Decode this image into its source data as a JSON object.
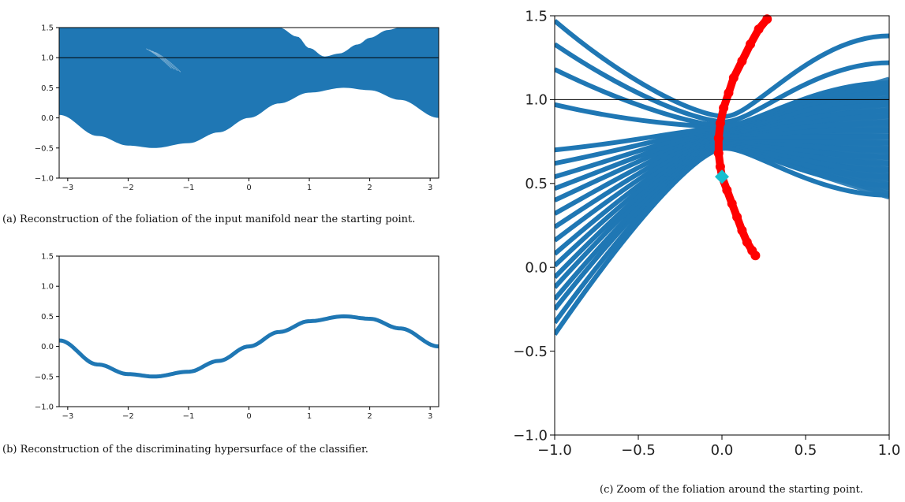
{
  "colors": {
    "foliation": "#1f77b4",
    "path": "#ff0000",
    "start": "#17becf",
    "axes": "#000000"
  },
  "captions": {
    "a": "(a) Reconstruction of the foliation of the input manifold near the starting point.",
    "b": "(b) Reconstruction of the discriminating hypersurface of the classifier.",
    "c": "(c) Zoom of the foliation around the starting point."
  },
  "chart_data": [
    {
      "id": "a",
      "type": "area",
      "xlim": [
        -3.14159,
        3.14159
      ],
      "ylim": [
        -1.0,
        1.5
      ],
      "xticks": [
        "−3",
        "−2",
        "−1",
        "0",
        "1",
        "2",
        "3"
      ],
      "xtick_values": [
        -3,
        -2,
        -1,
        0,
        1,
        2,
        3
      ],
      "yticks": [
        "1.5",
        "1.0",
        "0.5",
        "0.0",
        "−0.5",
        "−1.0"
      ],
      "ytick_values": [
        1.5,
        1.0,
        0.5,
        0.0,
        -0.5,
        -1.0
      ],
      "hline": 1.0,
      "series": [
        {
          "role": "lower-boundary",
          "x": [
            -3.14,
            -2.5,
            -2.0,
            -1.57,
            -1.0,
            -0.5,
            0.0,
            0.5,
            1.0,
            1.57,
            2.0,
            2.5,
            3.14
          ],
          "y": [
            0.05,
            -0.3,
            -0.46,
            -0.5,
            -0.42,
            -0.24,
            0.0,
            0.24,
            0.42,
            0.5,
            0.46,
            0.3,
            0.0
          ]
        },
        {
          "role": "upper-boundary",
          "x": [
            -3.14,
            0.5,
            0.8,
            1.0,
            1.25,
            1.5,
            1.8,
            2.0,
            2.3,
            2.5,
            3.14
          ],
          "y": [
            1.5,
            1.5,
            1.35,
            1.16,
            1.02,
            1.07,
            1.22,
            1.33,
            1.46,
            1.5,
            1.5
          ]
        }
      ]
    },
    {
      "id": "b",
      "type": "line",
      "xlim": [
        -3.14159,
        3.14159
      ],
      "ylim": [
        -1.0,
        1.5
      ],
      "xticks": [
        "−3",
        "−2",
        "−1",
        "0",
        "1",
        "2",
        "3"
      ],
      "xtick_values": [
        -3,
        -2,
        -1,
        0,
        1,
        2,
        3
      ],
      "yticks": [
        "1.5",
        "1.0",
        "0.5",
        "0.0",
        "−0.5",
        "−1.0"
      ],
      "ytick_values": [
        1.5,
        1.0,
        0.5,
        0.0,
        -0.5,
        -1.0
      ],
      "series": [
        {
          "x": [
            -3.14,
            -2.5,
            -2.0,
            -1.57,
            -1.0,
            -0.5,
            0.0,
            0.5,
            1.0,
            1.57,
            2.0,
            2.5,
            3.14
          ],
          "y": [
            0.1,
            -0.3,
            -0.46,
            -0.5,
            -0.42,
            -0.24,
            0.0,
            0.24,
            0.42,
            0.5,
            0.46,
            0.3,
            0.0
          ]
        }
      ]
    },
    {
      "id": "c",
      "type": "scatter",
      "xlim": [
        -1.0,
        1.0
      ],
      "ylim": [
        -1.0,
        1.5
      ],
      "xticks": [
        "−1.0",
        "−0.5",
        "0.0",
        "0.5",
        "1.0"
      ],
      "xtick_values": [
        -1.0,
        -0.5,
        0.0,
        0.5,
        1.0
      ],
      "yticks": [
        "1.5",
        "1.0",
        "0.5",
        "0.0",
        "−0.5",
        "−1.0"
      ],
      "ytick_values": [
        1.5,
        1.0,
        0.5,
        0.0,
        -0.5,
        -1.0
      ],
      "hline": 1.0,
      "leaves": {
        "left_y": [
          -0.4,
          -0.33,
          -0.25,
          -0.19,
          -0.12,
          -0.06,
          0.01,
          0.08,
          0.16,
          0.24,
          0.32,
          0.4,
          0.47,
          0.54,
          0.62,
          0.7,
          0.97,
          1.18,
          1.33,
          1.47
        ],
        "right_y": [
          0.43,
          0.49,
          0.54,
          0.58,
          0.62,
          0.66,
          0.7,
          0.74,
          0.78,
          0.82,
          0.86,
          0.9,
          0.93,
          0.97,
          1.0,
          1.04,
          1.07,
          1.1,
          1.22,
          1.38
        ]
      },
      "path": {
        "x": [
          0.27,
          0.22,
          0.17,
          0.12,
          0.07,
          0.04,
          0.01,
          -0.01,
          -0.02,
          -0.02,
          -0.01,
          0.0,
          0.03,
          0.06,
          0.09,
          0.12,
          0.15,
          0.18,
          0.2
        ],
        "y": [
          1.48,
          1.42,
          1.33,
          1.23,
          1.13,
          1.04,
          0.95,
          0.86,
          0.77,
          0.68,
          0.6,
          0.54,
          0.46,
          0.38,
          0.3,
          0.22,
          0.15,
          0.1,
          0.07
        ]
      },
      "start_point": {
        "x": 0.0,
        "y": 0.54
      }
    }
  ]
}
